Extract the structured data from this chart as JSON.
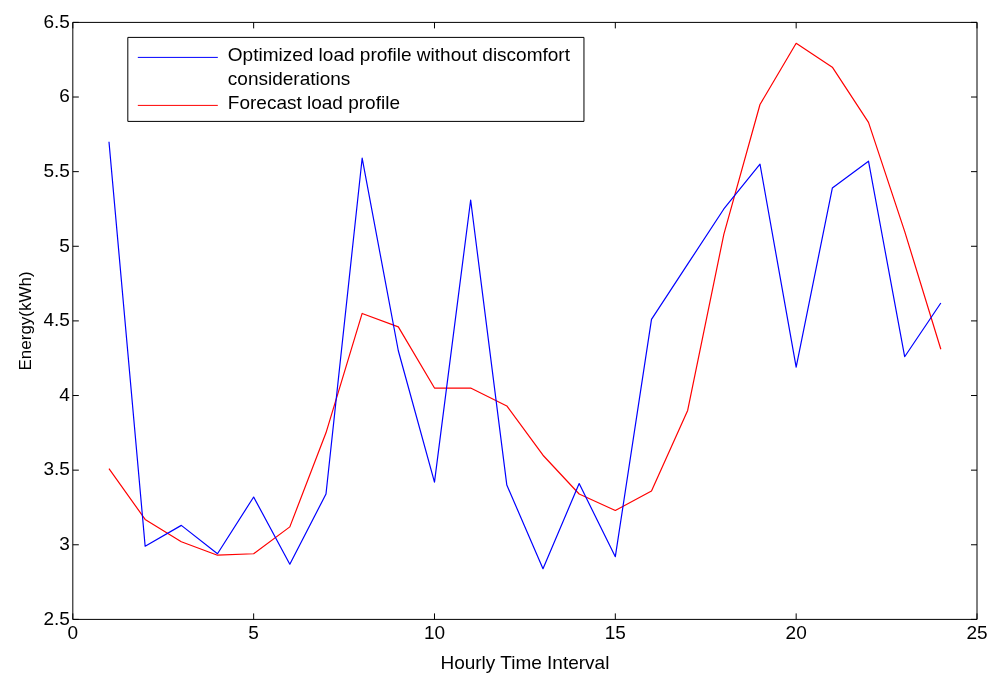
{
  "chart_data": {
    "type": "line",
    "xlabel": "Hourly Time Interval",
    "ylabel": "Energy(kWh)",
    "x": [
      1,
      2,
      3,
      4,
      5,
      6,
      7,
      8,
      9,
      10,
      11,
      12,
      13,
      14,
      15,
      16,
      17,
      18,
      19,
      20,
      21,
      22,
      23,
      24
    ],
    "series": [
      {
        "name": "Optimized load profile without discomfort considerations",
        "color": "#0000ff",
        "values": [
          5.7,
          2.99,
          3.13,
          2.94,
          3.32,
          2.87,
          3.34,
          5.59,
          4.3,
          3.42,
          5.31,
          3.4,
          2.84,
          3.41,
          2.92,
          4.51,
          4.88,
          5.25,
          5.55,
          4.19,
          5.39,
          5.57,
          4.26,
          4.62
        ]
      },
      {
        "name": "Forecast load profile",
        "color": "#ff0000",
        "values": [
          3.51,
          3.17,
          3.02,
          2.93,
          2.94,
          3.12,
          3.75,
          4.55,
          4.46,
          4.05,
          4.05,
          3.93,
          3.6,
          3.34,
          3.23,
          3.36,
          3.9,
          5.08,
          5.95,
          6.36,
          6.2,
          5.83,
          5.1,
          4.31
        ]
      }
    ],
    "xlim": [
      0,
      25
    ],
    "xticks": [
      0,
      5,
      10,
      15,
      20,
      25
    ],
    "ylim": [
      2.5,
      6.5
    ],
    "yticks": [
      2.5,
      3,
      3.5,
      4,
      4.5,
      5,
      5.5,
      6,
      6.5
    ],
    "grid": false,
    "legend": "top left",
    "marker": "none",
    "line_style": "solid"
  }
}
